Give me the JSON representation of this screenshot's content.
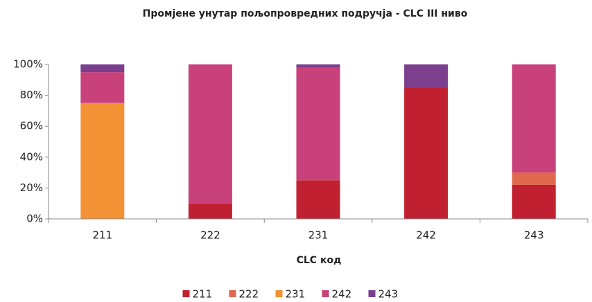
{
  "chart_data": {
    "type": "stacked_bar",
    "title": "Промјене унутар пољопровредних подручја - CLC III ниво",
    "x_label": "CLC код",
    "categories": [
      "211",
      "222",
      "231",
      "242",
      "243"
    ],
    "series": [
      {
        "name": "211",
        "color": "#c0202f",
        "values": [
          0,
          10,
          25,
          85,
          22
        ]
      },
      {
        "name": "222",
        "color": "#e0684f",
        "values": [
          0,
          0,
          0,
          0,
          8
        ]
      },
      {
        "name": "231",
        "color": "#f39234",
        "values": [
          75,
          0,
          0,
          0,
          0
        ]
      },
      {
        "name": "242",
        "color": "#c9417a",
        "values": [
          20,
          90,
          73,
          0,
          70
        ]
      },
      {
        "name": "243",
        "color": "#7b3f8e",
        "values": [
          5,
          0,
          2,
          15,
          0
        ]
      }
    ],
    "ylim": [
      0,
      100
    ],
    "yticks": [
      {
        "value": 0,
        "label": "0%"
      },
      {
        "value": 20,
        "label": "20%"
      },
      {
        "value": 40,
        "label": "40%"
      },
      {
        "value": 60,
        "label": "60%"
      },
      {
        "value": 80,
        "label": "80%"
      },
      {
        "value": 100,
        "label": "100%"
      }
    ],
    "legend": "bottom"
  }
}
